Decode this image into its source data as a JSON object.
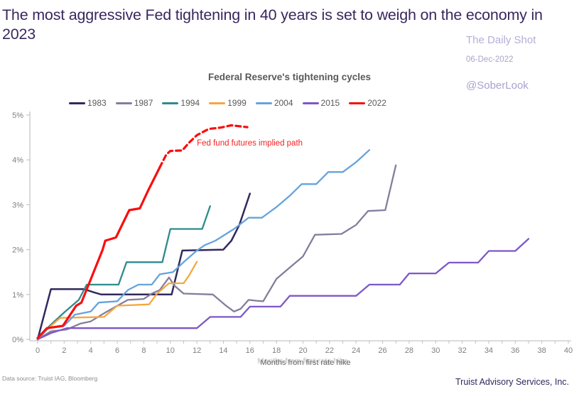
{
  "page": {
    "title": "The most aggressive Fed tightening in 40 years is set to weigh on the economy in 2023",
    "watermark": {
      "name": "The Daily Shot",
      "date": "06-Dec-2022",
      "handle": "@SoberLook"
    },
    "footer_left": "Data source: Truist IAG, Bloomberg",
    "footer_right": "Truist Advisory Services, Inc."
  },
  "colors": {
    "title_text": "#39275e",
    "watermark_text": "#b4aed6",
    "chart_text": "#595959",
    "axis_line": "#c6c6c6",
    "tick_text": "#7f7f7f",
    "annotation_red": "#fb1d1d"
  },
  "chart_data": {
    "type": "line",
    "title": "Federal Reserve's tightening cycles",
    "xlabel": "Months from first rate hike",
    "ylabel": "",
    "x_axis": {
      "min": 0,
      "max": 40,
      "tick_step": 2,
      "minor_step": 1
    },
    "y_axis": {
      "min": 0,
      "max": 5,
      "tick_step": 1,
      "tick_suffix": "%"
    },
    "grid": false,
    "legend_position": "top",
    "legend": [
      {
        "label": "1983",
        "color": "#312a5e"
      },
      {
        "label": "1987",
        "color": "#857d9c"
      },
      {
        "label": "1994",
        "color": "#2e8b8c"
      },
      {
        "label": "1999",
        "color": "#f4a83d"
      },
      {
        "label": "2004",
        "color": "#66a3dc"
      },
      {
        "label": "2015",
        "color": "#7e57c8"
      },
      {
        "label": "2022",
        "color": "#fb0d0d"
      }
    ],
    "annotation": {
      "text": "Fed fund futures implied path",
      "month": 12,
      "value": 4.32,
      "color": "#fb1d1d"
    },
    "series": [
      {
        "name": "1983",
        "color": "#312a5e",
        "width": 2.5,
        "dash": null,
        "points": [
          [
            0,
            0
          ],
          [
            1,
            1.12
          ],
          [
            3.5,
            1.12
          ],
          [
            4.2,
            1.05
          ],
          [
            4.8,
            1.0
          ],
          [
            10.1,
            1.0
          ],
          [
            10.9,
            1.98
          ],
          [
            14,
            2.0
          ],
          [
            14.6,
            2.2
          ],
          [
            15.2,
            2.55
          ],
          [
            16,
            3.25
          ]
        ]
      },
      {
        "name": "1987",
        "color": "#857d9c",
        "width": 2.3,
        "dash": null,
        "points": [
          [
            0,
            0
          ],
          [
            1,
            0.18
          ],
          [
            2.2,
            0.22
          ],
          [
            3.2,
            0.35
          ],
          [
            4,
            0.4
          ],
          [
            5,
            0.58
          ],
          [
            6,
            0.75
          ],
          [
            6.8,
            0.88
          ],
          [
            8,
            0.9
          ],
          [
            8.6,
            1.02
          ],
          [
            9.2,
            1.1
          ],
          [
            9.9,
            1.38
          ],
          [
            10.3,
            1.2
          ],
          [
            11,
            1.02
          ],
          [
            13.2,
            1.0
          ],
          [
            14.2,
            0.75
          ],
          [
            14.8,
            0.62
          ],
          [
            15.3,
            0.68
          ],
          [
            15.9,
            0.88
          ],
          [
            16.5,
            0.86
          ],
          [
            17,
            0.85
          ],
          [
            18,
            1.35
          ],
          [
            19,
            1.6
          ],
          [
            20,
            1.85
          ],
          [
            20.9,
            2.33
          ],
          [
            22.9,
            2.35
          ],
          [
            24,
            2.55
          ],
          [
            24.9,
            2.86
          ],
          [
            26.2,
            2.88
          ],
          [
            27,
            3.88
          ]
        ]
      },
      {
        "name": "1994",
        "color": "#2e8b8c",
        "width": 2.3,
        "dash": null,
        "points": [
          [
            0,
            0
          ],
          [
            0.9,
            0.3
          ],
          [
            2,
            0.6
          ],
          [
            3.1,
            0.88
          ],
          [
            3.7,
            1.22
          ],
          [
            6.1,
            1.22
          ],
          [
            6.7,
            1.72
          ],
          [
            9.4,
            1.72
          ],
          [
            10,
            2.46
          ],
          [
            12.4,
            2.46
          ],
          [
            13,
            2.97
          ]
        ]
      },
      {
        "name": "1999",
        "color": "#f4a83d",
        "width": 2.3,
        "dash": null,
        "points": [
          [
            0,
            0
          ],
          [
            1,
            0.3
          ],
          [
            1.7,
            0.48
          ],
          [
            5,
            0.5
          ],
          [
            6,
            0.75
          ],
          [
            8.4,
            0.78
          ],
          [
            9,
            1.02
          ],
          [
            9.9,
            1.25
          ],
          [
            11,
            1.25
          ],
          [
            11.4,
            1.42
          ],
          [
            12,
            1.73
          ]
        ]
      },
      {
        "name": "2004",
        "color": "#66a3dc",
        "width": 2.3,
        "dash": null,
        "points": [
          [
            0,
            0
          ],
          [
            0.8,
            0.25
          ],
          [
            2,
            0.3
          ],
          [
            2.8,
            0.55
          ],
          [
            4,
            0.62
          ],
          [
            4.6,
            0.82
          ],
          [
            6,
            0.85
          ],
          [
            6.8,
            1.1
          ],
          [
            7.6,
            1.22
          ],
          [
            8.6,
            1.22
          ],
          [
            9.2,
            1.45
          ],
          [
            10.2,
            1.5
          ],
          [
            11,
            1.72
          ],
          [
            12,
            1.98
          ],
          [
            12.6,
            2.1
          ],
          [
            13.4,
            2.2
          ],
          [
            14.8,
            2.46
          ],
          [
            15.9,
            2.71
          ],
          [
            16.9,
            2.71
          ],
          [
            18,
            2.95
          ],
          [
            19,
            3.2
          ],
          [
            19.9,
            3.46
          ],
          [
            21,
            3.46
          ],
          [
            21.9,
            3.73
          ],
          [
            23,
            3.73
          ],
          [
            24,
            3.95
          ],
          [
            25,
            4.22
          ]
        ]
      },
      {
        "name": "2015",
        "color": "#7e57c8",
        "width": 2.3,
        "dash": null,
        "points": [
          [
            0,
            0
          ],
          [
            1,
            0.14
          ],
          [
            2.2,
            0.25
          ],
          [
            12,
            0.25
          ],
          [
            13,
            0.5
          ],
          [
            15.3,
            0.5
          ],
          [
            16,
            0.73
          ],
          [
            18.3,
            0.73
          ],
          [
            19,
            0.97
          ],
          [
            24,
            0.97
          ],
          [
            25,
            1.22
          ],
          [
            27.3,
            1.22
          ],
          [
            28,
            1.47
          ],
          [
            30,
            1.47
          ],
          [
            31,
            1.71
          ],
          [
            33.2,
            1.71
          ],
          [
            34,
            1.97
          ],
          [
            36,
            1.97
          ],
          [
            37,
            2.24
          ]
        ]
      },
      {
        "name": "2022",
        "color": "#fb0d0d",
        "width": 3.2,
        "dash": null,
        "points": [
          [
            0,
            0.03
          ],
          [
            0.7,
            0.25
          ],
          [
            1.9,
            0.3
          ],
          [
            2.9,
            0.75
          ],
          [
            3.3,
            0.82
          ],
          [
            4.9,
            2.0
          ],
          [
            5.1,
            2.2
          ],
          [
            5.9,
            2.27
          ],
          [
            6.9,
            2.88
          ],
          [
            7.7,
            2.92
          ],
          [
            8.3,
            3.3
          ],
          [
            9.2,
            3.83
          ]
        ]
      },
      {
        "name": "2022 futures implied",
        "color": "#fb0d0d",
        "width": 3.2,
        "dash": "7 5",
        "points": [
          [
            9.2,
            3.83
          ],
          [
            9.7,
            4.12
          ],
          [
            10,
            4.2
          ],
          [
            10.9,
            4.21
          ],
          [
            11.4,
            4.38
          ],
          [
            12,
            4.55
          ],
          [
            12.9,
            4.69
          ],
          [
            13.8,
            4.72
          ],
          [
            14.6,
            4.77
          ],
          [
            15.8,
            4.73
          ]
        ]
      }
    ]
  }
}
